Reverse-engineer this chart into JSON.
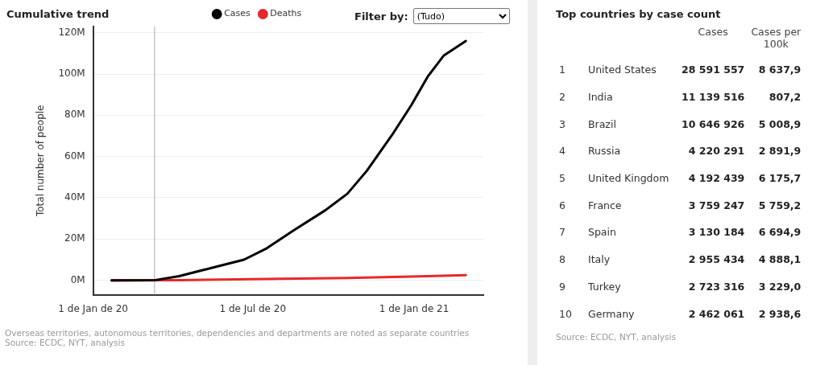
{
  "chart_data": [
    {
      "type": "line",
      "title": "Cumulative trend",
      "ylabel": "Total number of people",
      "series": [
        {
          "name": "Cases",
          "color": "#000000",
          "x": [
            "2020-01-22",
            "2020-03-12",
            "2020-04-08",
            "2020-05-15",
            "2020-06-21",
            "2020-07-17",
            "2020-08-16",
            "2020-09-22",
            "2020-10-17",
            "2020-11-08",
            "2020-12-07",
            "2020-12-29",
            "2021-01-17",
            "2021-02-04",
            "2021-03-01"
          ],
          "values": [
            0,
            100000,
            2000000,
            6000000,
            10000000,
            15500000,
            24000000,
            34000000,
            42000000,
            53000000,
            70500000,
            85000000,
            99000000,
            109000000,
            116000000
          ]
        },
        {
          "name": "Deaths",
          "color": "#e8282b",
          "x": [
            "2020-01-22",
            "2020-04-08",
            "2020-07-17",
            "2020-10-17",
            "2020-12-29",
            "2021-03-01"
          ],
          "values": [
            0,
            100000,
            600000,
            1100000,
            1800000,
            2500000
          ]
        }
      ],
      "xlim": [
        "2020-01-01",
        "2021-03-21"
      ],
      "xticks": [
        {
          "value": "2020-01-01",
          "label": "1 de Jan de 20"
        },
        {
          "value": "2020-07-01",
          "label": "1 de Jul de 20"
        },
        {
          "value": "2021-01-01",
          "label": "1 de Jan de 21"
        }
      ],
      "ylim": [
        -7000000,
        123000000
      ],
      "yticks": [
        {
          "value": 0,
          "label": "0M"
        },
        {
          "value": 20000000,
          "label": "20M"
        },
        {
          "value": 40000000,
          "label": "40M"
        },
        {
          "value": 60000000,
          "label": "60M"
        },
        {
          "value": 80000000,
          "label": "80M"
        },
        {
          "value": 100000000,
          "label": "100M"
        },
        {
          "value": 120000000,
          "label": "120M"
        }
      ],
      "ref_lines": [
        {
          "axis": "x",
          "value": "2020-03-11",
          "color": "#aaaaaa"
        }
      ],
      "grid": "y",
      "legend": "top",
      "marker": "none",
      "line_style": "solid",
      "annotations": [
        "Filter by:",
        "(Tudo)",
        "Overseas territories, autonomous territories, dependencies and departments are noted as separate countries",
        "Source: ECDC, NYT, analysis"
      ]
    },
    {
      "type": "heatmap",
      "title": "Top countries by case count",
      "categories": [
        "Cases",
        "Cases per 100k"
      ],
      "y_categories": [
        "United States",
        "India",
        "Brazil",
        "Russia",
        "United Kingdom",
        "France",
        "Spain",
        "Italy",
        "Turkey",
        "Germany"
      ],
      "y2_categories": [
        "1",
        "2",
        "3",
        "4",
        "5",
        "6",
        "7",
        "8",
        "9",
        "10"
      ],
      "cells": [
        [
          28591557,
          8637.9
        ],
        [
          11139516,
          807.2
        ],
        [
          10646926,
          5008.9
        ],
        [
          4220291,
          2891.9
        ],
        [
          4192439,
          6175.7
        ],
        [
          3759247,
          5759.2
        ],
        [
          3130184,
          6694.9
        ],
        [
          2955434,
          4888.1
        ],
        [
          2723316,
          3229.0
        ],
        [
          2462061,
          2938.6
        ]
      ],
      "cell_labels": [
        [
          "28 591 557",
          "8 637,9"
        ],
        [
          "11 139 516",
          "807,2"
        ],
        [
          "10 646 926",
          "5 008,9"
        ],
        [
          "4 220 291",
          "2 891,9"
        ],
        [
          "4 192 439",
          "6 175,7"
        ],
        [
          "3 759 247",
          "5 759,2"
        ],
        [
          "3 130 184",
          "6 694,9"
        ],
        [
          "2 955 434",
          "4 888,1"
        ],
        [
          "2 723 316",
          "3 229,0"
        ],
        [
          "2 462 061",
          "2 938,6"
        ]
      ],
      "annotations": [
        "Source: ECDC, NYT, analysis"
      ]
    }
  ]
}
